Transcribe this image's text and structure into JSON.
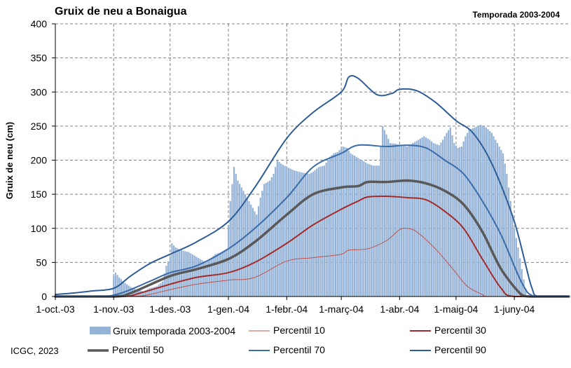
{
  "page": {
    "title": "Gruix de neu a Bonaigua",
    "season_label": "Temporada 2003-2004",
    "credit": "ICGC, 2023"
  },
  "colors": {
    "bars": "#95B3D7",
    "p10": "#C0504D",
    "p30": "#A52A2A",
    "p50": "#595959",
    "p70": "#3A6BAA",
    "p90": "#2E5C98",
    "grid": "#808080",
    "axis": "#000000"
  },
  "chart_data": {
    "type": "bar",
    "title": "Gruix de neu a Bonaigua",
    "subtitle": "Temporada 2003-2004",
    "xlabel": "",
    "ylabel": "Gruix de neu (cm)",
    "xlim": [
      "2003-10-01",
      "2004-06-30"
    ],
    "ylim": [
      0,
      400
    ],
    "yticks": [
      0,
      50,
      100,
      150,
      200,
      250,
      300,
      350,
      400
    ],
    "xticks": [
      {
        "date": "2003-10-01",
        "label": "1-oct.-03"
      },
      {
        "date": "2003-11-01",
        "label": "1-nov.-03"
      },
      {
        "date": "2003-12-01",
        "label": "1-des.-03"
      },
      {
        "date": "2004-01-01",
        "label": "1-gen.-04"
      },
      {
        "date": "2004-02-01",
        "label": "1-febr.-04"
      },
      {
        "date": "2004-03-01",
        "label": "1-març-04"
      },
      {
        "date": "2004-04-01",
        "label": "1-abr.-04"
      },
      {
        "date": "2004-05-01",
        "label": "1-maig-04"
      },
      {
        "date": "2004-06-01",
        "label": "1-juny-04"
      }
    ],
    "grid": {
      "y": "dashed",
      "x": "dashed"
    },
    "legend_position": "bottom",
    "bars": {
      "name": "Gruix temporada 2003-2004",
      "points": [
        [
          "2003-10-31",
          0
        ],
        [
          "2003-11-01",
          30
        ],
        [
          "2003-11-02",
          35
        ],
        [
          "2003-11-04",
          28
        ],
        [
          "2003-11-07",
          20
        ],
        [
          "2003-11-10",
          14
        ],
        [
          "2003-11-13",
          10
        ],
        [
          "2003-11-17",
          8
        ],
        [
          "2003-11-20",
          12
        ],
        [
          "2003-11-24",
          15
        ],
        [
          "2003-11-27",
          22
        ],
        [
          "2003-11-29",
          45
        ],
        [
          "2003-12-01",
          58
        ],
        [
          "2003-12-02",
          78
        ],
        [
          "2003-12-04",
          72
        ],
        [
          "2003-12-07",
          68
        ],
        [
          "2003-12-11",
          65
        ],
        [
          "2003-12-14",
          60
        ],
        [
          "2003-12-17",
          55
        ],
        [
          "2003-12-20",
          50
        ],
        [
          "2003-12-23",
          57
        ],
        [
          "2003-12-25",
          62
        ],
        [
          "2003-12-28",
          65
        ],
        [
          "2003-12-31",
          70
        ],
        [
          "2004-01-02",
          140
        ],
        [
          "2004-01-04",
          190
        ],
        [
          "2004-01-06",
          170
        ],
        [
          "2004-01-08",
          160
        ],
        [
          "2004-01-11",
          145
        ],
        [
          "2004-01-14",
          130
        ],
        [
          "2004-01-16",
          120
        ],
        [
          "2004-01-18",
          145
        ],
        [
          "2004-01-20",
          165
        ],
        [
          "2004-01-23",
          170
        ],
        [
          "2004-01-25",
          180
        ],
        [
          "2004-01-27",
          200
        ],
        [
          "2004-01-29",
          195
        ],
        [
          "2004-02-01",
          190
        ],
        [
          "2004-02-05",
          185
        ],
        [
          "2004-02-09",
          182
        ],
        [
          "2004-02-13",
          180
        ],
        [
          "2004-02-15",
          183
        ],
        [
          "2004-02-18",
          190
        ],
        [
          "2004-02-21",
          192
        ],
        [
          "2004-02-24",
          205
        ],
        [
          "2004-02-26",
          210
        ],
        [
          "2004-02-28",
          212
        ],
        [
          "2004-03-02",
          220
        ],
        [
          "2004-03-04",
          218
        ],
        [
          "2004-03-06",
          210
        ],
        [
          "2004-03-09",
          205
        ],
        [
          "2004-03-12",
          200
        ],
        [
          "2004-03-15",
          195
        ],
        [
          "2004-03-18",
          192
        ],
        [
          "2004-03-21",
          192
        ],
        [
          "2004-03-23",
          250
        ],
        [
          "2004-03-25",
          238
        ],
        [
          "2004-03-27",
          225
        ],
        [
          "2004-03-30",
          224
        ],
        [
          "2004-04-02",
          222
        ],
        [
          "2004-04-05",
          220
        ],
        [
          "2004-04-08",
          225
        ],
        [
          "2004-04-11",
          230
        ],
        [
          "2004-04-14",
          235
        ],
        [
          "2004-04-17",
          230
        ],
        [
          "2004-04-19",
          225
        ],
        [
          "2004-04-22",
          222
        ],
        [
          "2004-04-24",
          230
        ],
        [
          "2004-04-26",
          240
        ],
        [
          "2004-04-28",
          248
        ],
        [
          "2004-04-30",
          225
        ],
        [
          "2004-05-02",
          218
        ],
        [
          "2004-05-04",
          220
        ],
        [
          "2004-05-06",
          235
        ],
        [
          "2004-05-08",
          245
        ],
        [
          "2004-05-11",
          248
        ],
        [
          "2004-05-14",
          252
        ],
        [
          "2004-05-17",
          248
        ],
        [
          "2004-05-20",
          240
        ],
        [
          "2004-05-23",
          225
        ],
        [
          "2004-05-26",
          210
        ],
        [
          "2004-05-28",
          180
        ],
        [
          "2004-05-30",
          140
        ],
        [
          "2004-06-01",
          100
        ],
        [
          "2004-06-03",
          72
        ],
        [
          "2004-06-05",
          40
        ],
        [
          "2004-06-06",
          25
        ],
        [
          "2004-06-07",
          12
        ],
        [
          "2004-06-08",
          0
        ]
      ]
    },
    "series": [
      {
        "name": "Percentil 10",
        "key": "p10",
        "width": 1,
        "points": [
          [
            "2003-10-01",
            0
          ],
          [
            "2003-11-10",
            0
          ],
          [
            "2003-11-20",
            3
          ],
          [
            "2003-12-01",
            10
          ],
          [
            "2003-12-15",
            18
          ],
          [
            "2004-01-01",
            24
          ],
          [
            "2004-01-15",
            28
          ],
          [
            "2004-02-01",
            52
          ],
          [
            "2004-02-15",
            57
          ],
          [
            "2004-03-01",
            62
          ],
          [
            "2004-03-05",
            68
          ],
          [
            "2004-03-15",
            70
          ],
          [
            "2004-03-25",
            82
          ],
          [
            "2004-04-01",
            98
          ],
          [
            "2004-04-05",
            100
          ],
          [
            "2004-04-10",
            95
          ],
          [
            "2004-04-20",
            70
          ],
          [
            "2004-04-30",
            38
          ],
          [
            "2004-05-07",
            15
          ],
          [
            "2004-05-15",
            3
          ],
          [
            "2004-05-20",
            0
          ],
          [
            "2004-06-30",
            0
          ]
        ]
      },
      {
        "name": "Percentil 30",
        "key": "p30",
        "width": 2,
        "points": [
          [
            "2003-10-01",
            0
          ],
          [
            "2003-11-05",
            0
          ],
          [
            "2003-11-15",
            5
          ],
          [
            "2003-12-01",
            18
          ],
          [
            "2003-12-15",
            28
          ],
          [
            "2004-01-01",
            35
          ],
          [
            "2004-01-15",
            50
          ],
          [
            "2004-02-01",
            78
          ],
          [
            "2004-02-15",
            105
          ],
          [
            "2004-03-01",
            128
          ],
          [
            "2004-03-10",
            140
          ],
          [
            "2004-03-15",
            146
          ],
          [
            "2004-03-25",
            147
          ],
          [
            "2004-04-05",
            145
          ],
          [
            "2004-04-15",
            142
          ],
          [
            "2004-04-25",
            125
          ],
          [
            "2004-05-05",
            100
          ],
          [
            "2004-05-15",
            55
          ],
          [
            "2004-05-25",
            12
          ],
          [
            "2004-06-01",
            0
          ],
          [
            "2004-06-30",
            0
          ]
        ]
      },
      {
        "name": "Percentil 50",
        "key": "p50",
        "width": 3.5,
        "points": [
          [
            "2003-10-01",
            0
          ],
          [
            "2003-11-01",
            0
          ],
          [
            "2003-11-10",
            5
          ],
          [
            "2003-12-01",
            30
          ],
          [
            "2003-12-15",
            40
          ],
          [
            "2004-01-01",
            55
          ],
          [
            "2004-01-15",
            80
          ],
          [
            "2004-02-01",
            120
          ],
          [
            "2004-02-15",
            150
          ],
          [
            "2004-03-01",
            160
          ],
          [
            "2004-03-10",
            162
          ],
          [
            "2004-03-15",
            168
          ],
          [
            "2004-03-25",
            168
          ],
          [
            "2004-04-05",
            170
          ],
          [
            "2004-04-15",
            166
          ],
          [
            "2004-04-25",
            155
          ],
          [
            "2004-05-05",
            135
          ],
          [
            "2004-05-15",
            95
          ],
          [
            "2004-05-25",
            40
          ],
          [
            "2004-06-05",
            2
          ],
          [
            "2004-06-10",
            0
          ],
          [
            "2004-06-30",
            0
          ]
        ]
      },
      {
        "name": "Percentil 70",
        "key": "p70",
        "width": 2,
        "points": [
          [
            "2003-10-01",
            0
          ],
          [
            "2003-10-25",
            0
          ],
          [
            "2003-11-05",
            5
          ],
          [
            "2003-11-20",
            22
          ],
          [
            "2003-12-01",
            35
          ],
          [
            "2003-12-15",
            45
          ],
          [
            "2004-01-01",
            70
          ],
          [
            "2004-01-15",
            100
          ],
          [
            "2004-02-01",
            145
          ],
          [
            "2004-02-15",
            190
          ],
          [
            "2004-03-01",
            210
          ],
          [
            "2004-03-10",
            222
          ],
          [
            "2004-03-25",
            220
          ],
          [
            "2004-04-05",
            222
          ],
          [
            "2004-04-15",
            218
          ],
          [
            "2004-04-25",
            200
          ],
          [
            "2004-05-05",
            180
          ],
          [
            "2004-05-15",
            140
          ],
          [
            "2004-05-25",
            90
          ],
          [
            "2004-06-05",
            20
          ],
          [
            "2004-06-12",
            0
          ],
          [
            "2004-06-30",
            0
          ]
        ]
      },
      {
        "name": "Percentil 90",
        "key": "p90",
        "width": 2,
        "points": [
          [
            "2003-10-01",
            3
          ],
          [
            "2003-10-10",
            5
          ],
          [
            "2003-10-20",
            8
          ],
          [
            "2003-11-01",
            12
          ],
          [
            "2003-11-10",
            30
          ],
          [
            "2003-11-20",
            48
          ],
          [
            "2003-12-01",
            62
          ],
          [
            "2003-12-15",
            80
          ],
          [
            "2004-01-01",
            110
          ],
          [
            "2004-01-15",
            160
          ],
          [
            "2004-02-01",
            232
          ],
          [
            "2004-02-15",
            270
          ],
          [
            "2004-03-01",
            300
          ],
          [
            "2004-03-05",
            322
          ],
          [
            "2004-03-10",
            320
          ],
          [
            "2004-03-20",
            296
          ],
          [
            "2004-03-28",
            298
          ],
          [
            "2004-04-01",
            304
          ],
          [
            "2004-04-10",
            302
          ],
          [
            "2004-04-20",
            285
          ],
          [
            "2004-05-01",
            258
          ],
          [
            "2004-05-10",
            240
          ],
          [
            "2004-05-20",
            195
          ],
          [
            "2004-06-01",
            110
          ],
          [
            "2004-06-10",
            15
          ],
          [
            "2004-06-14",
            0
          ],
          [
            "2004-06-30",
            0
          ]
        ]
      }
    ]
  }
}
